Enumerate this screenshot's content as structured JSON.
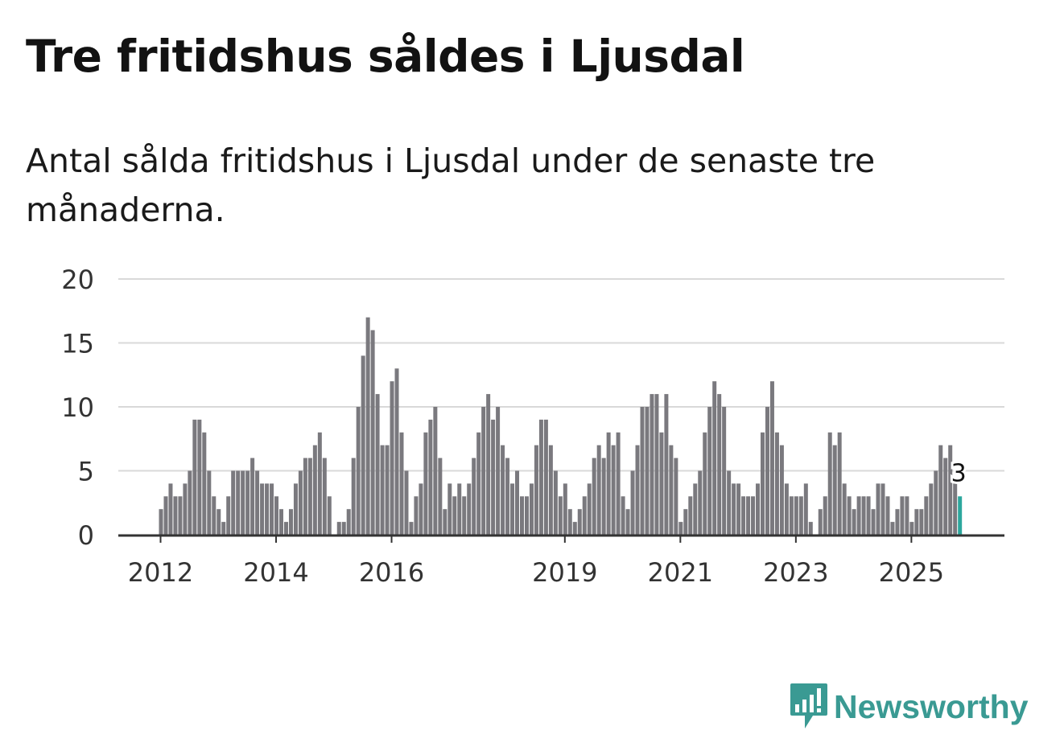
{
  "header": {
    "title": "Tre fritidshus såldes i Ljusdal",
    "subtitle": "Antal sålda fritidshus i Ljusdal under de senaste tre månaderna."
  },
  "brand": {
    "name": "Newsworthy"
  },
  "colors": {
    "bar": "#7a797e",
    "highlight": "#2ca79d",
    "grid": "#d9d9d9",
    "axis": "#333333",
    "brand": "#3a9a93"
  },
  "chart_data": {
    "type": "bar",
    "title": "Tre fritidshus såldes i Ljusdal",
    "subtitle": "Antal sålda fritidshus i Ljusdal under de senaste tre månaderna.",
    "xlabel": "",
    "ylabel": "",
    "ylim": [
      0,
      20
    ],
    "yticks": [
      0,
      5,
      10,
      15,
      20
    ],
    "grid": true,
    "start": "2012-01",
    "frequency": "monthly",
    "xticks": [
      {
        "label": "2012",
        "index": 0
      },
      {
        "label": "2014",
        "index": 24
      },
      {
        "label": "2016",
        "index": 48
      },
      {
        "label": "2019",
        "index": 84
      },
      {
        "label": "2021",
        "index": 108
      },
      {
        "label": "2023",
        "index": 132
      },
      {
        "label": "2025",
        "index": 156
      }
    ],
    "values": [
      2,
      3,
      4,
      3,
      3,
      4,
      5,
      9,
      9,
      8,
      5,
      3,
      2,
      1,
      3,
      5,
      5,
      5,
      5,
      6,
      5,
      4,
      4,
      4,
      3,
      2,
      1,
      2,
      4,
      5,
      6,
      6,
      7,
      8,
      6,
      3,
      0,
      1,
      1,
      2,
      6,
      10,
      14,
      17,
      16,
      11,
      7,
      7,
      12,
      13,
      8,
      5,
      1,
      3,
      4,
      8,
      9,
      10,
      6,
      2,
      4,
      3,
      4,
      3,
      4,
      6,
      8,
      10,
      11,
      9,
      10,
      7,
      6,
      4,
      5,
      3,
      3,
      4,
      7,
      9,
      9,
      7,
      5,
      3,
      4,
      2,
      1,
      2,
      3,
      4,
      6,
      7,
      6,
      8,
      7,
      8,
      3,
      2,
      5,
      7,
      10,
      10,
      11,
      11,
      8,
      11,
      7,
      6,
      1,
      2,
      3,
      4,
      5,
      8,
      10,
      12,
      11,
      10,
      5,
      4,
      4,
      3,
      3,
      3,
      4,
      8,
      10,
      12,
      8,
      7,
      4,
      3,
      3,
      3,
      4,
      1,
      0,
      2,
      3,
      8,
      7,
      8,
      4,
      3,
      2,
      3,
      3,
      3,
      2,
      4,
      4,
      3,
      1,
      2,
      3,
      3,
      1,
      2,
      2,
      3,
      4,
      5,
      7,
      6,
      7,
      4,
      3
    ],
    "highlight_last": true,
    "annotation": {
      "label": "3",
      "index": 166
    }
  }
}
